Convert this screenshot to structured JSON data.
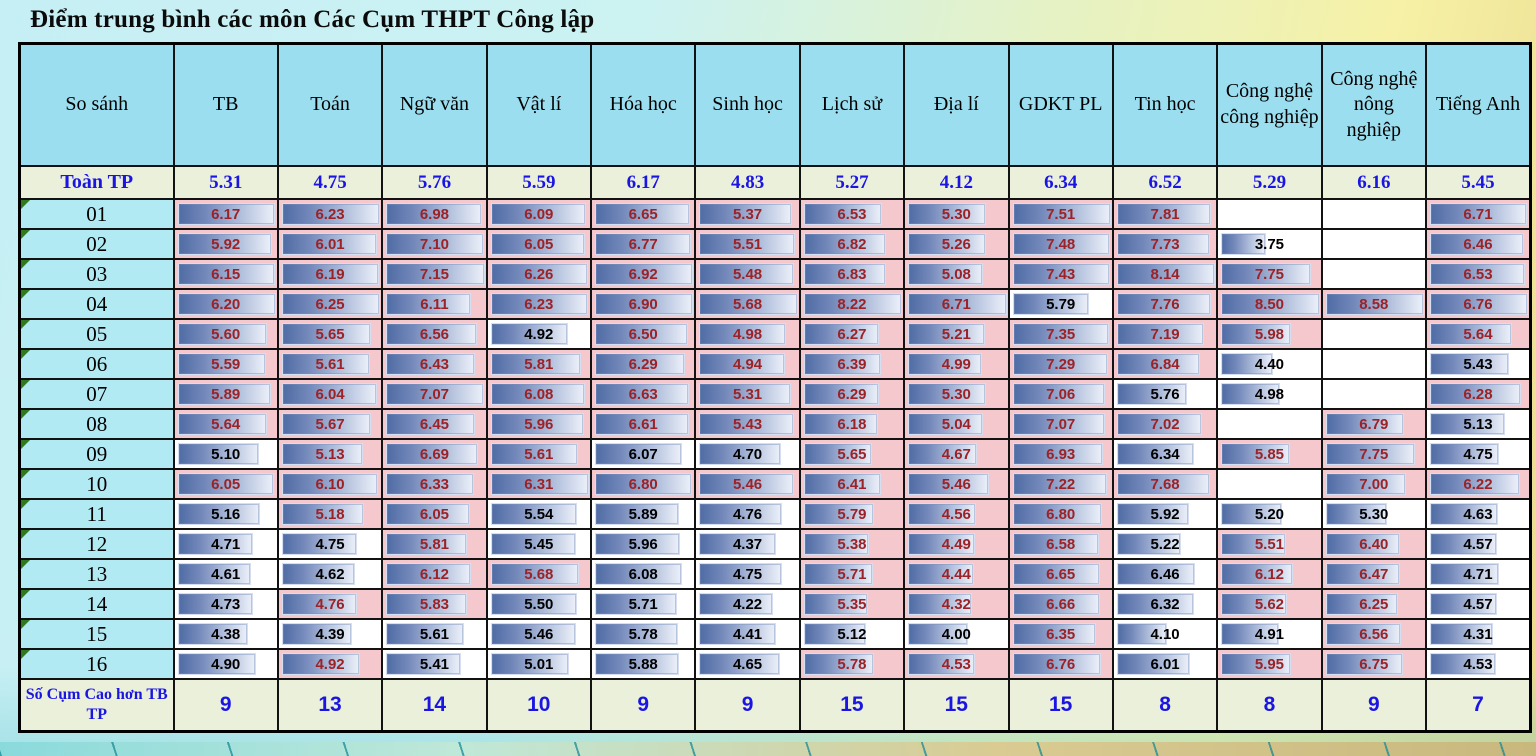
{
  "title": "Điểm trung bình các môn Các Cụm THPT Công lập",
  "colors": {
    "header_bg": "#9bdeef",
    "label_bg": "#b2eaf3",
    "summary_bg": "#eaf0da",
    "summary_text": "#1b15e3",
    "above_bg": "#f4c8cd",
    "below_bg": "#ffffff",
    "above_text": "#9b2227",
    "bar_dark": "#4f6ca4",
    "bar_light": "#ecf0f9"
  },
  "chart_data": {
    "type": "table",
    "title": "Điểm trung bình các môn Các Cụm THPT Công lập",
    "corner_header": "So sánh",
    "columns": [
      "TB",
      "Toán",
      "Ngữ văn",
      "Vật lí",
      "Hóa học",
      "Sinh học",
      "Lịch sử",
      "Địa lí",
      "GDKT PL",
      "Tin học",
      "Công nghệ công nghiệp",
      "Công nghệ nông nghiệp",
      "Tiếng Anh"
    ],
    "city_row": {
      "label": "Toàn TP",
      "values": [
        "5.31",
        "4.75",
        "5.76",
        "5.59",
        "6.17",
        "4.83",
        "5.27",
        "4.12",
        "6.34",
        "6.52",
        "5.29",
        "6.16",
        "5.45"
      ]
    },
    "cluster_rows": [
      {
        "label": "01",
        "values": [
          "6.17",
          "6.23",
          "6.98",
          "6.09",
          "6.65",
          "5.37",
          "6.53",
          "5.30",
          "7.51",
          "7.81",
          null,
          null,
          "6.71"
        ]
      },
      {
        "label": "02",
        "values": [
          "5.92",
          "6.01",
          "7.10",
          "6.05",
          "6.77",
          "5.51",
          "6.82",
          "5.26",
          "7.48",
          "7.73",
          "3.75",
          null,
          "6.46"
        ]
      },
      {
        "label": "03",
        "values": [
          "6.15",
          "6.19",
          "7.15",
          "6.26",
          "6.92",
          "5.48",
          "6.83",
          "5.08",
          "7.43",
          "8.14",
          "7.75",
          null,
          "6.53"
        ]
      },
      {
        "label": "04",
        "values": [
          "6.20",
          "6.25",
          "6.11",
          "6.23",
          "6.90",
          "5.68",
          "8.22",
          "6.71",
          "5.79",
          "7.76",
          "8.50",
          "8.58",
          "6.76"
        ]
      },
      {
        "label": "05",
        "values": [
          "5.60",
          "5.65",
          "6.56",
          "4.92",
          "6.50",
          "4.98",
          "6.27",
          "5.21",
          "7.35",
          "7.19",
          "5.98",
          null,
          "5.64"
        ]
      },
      {
        "label": "06",
        "values": [
          "5.59",
          "5.61",
          "6.43",
          "5.81",
          "6.29",
          "4.94",
          "6.39",
          "4.99",
          "7.29",
          "6.84",
          "4.40",
          null,
          "5.43"
        ]
      },
      {
        "label": "07",
        "values": [
          "5.89",
          "6.04",
          "7.07",
          "6.08",
          "6.63",
          "5.31",
          "6.29",
          "5.30",
          "7.06",
          "5.76",
          "4.98",
          null,
          "6.28"
        ]
      },
      {
        "label": "08",
        "values": [
          "5.64",
          "5.67",
          "6.45",
          "5.96",
          "6.61",
          "5.43",
          "6.18",
          "5.04",
          "7.07",
          "7.02",
          null,
          "6.79",
          "5.13"
        ]
      },
      {
        "label": "09",
        "values": [
          "5.10",
          "5.13",
          "6.69",
          "5.61",
          "6.07",
          "4.70",
          "5.65",
          "4.67",
          "6.93",
          "6.34",
          "5.85",
          "7.75",
          "4.75"
        ]
      },
      {
        "label": "10",
        "values": [
          "6.05",
          "6.10",
          "6.33",
          "6.31",
          "6.80",
          "5.46",
          "6.41",
          "5.46",
          "7.22",
          "7.68",
          null,
          "7.00",
          "6.22"
        ]
      },
      {
        "label": "11",
        "values": [
          "5.16",
          "5.18",
          "6.05",
          "5.54",
          "5.89",
          "4.76",
          "5.79",
          "4.56",
          "6.80",
          "5.92",
          "5.20",
          "5.30",
          "4.63"
        ]
      },
      {
        "label": "12",
        "values": [
          "4.71",
          "4.75",
          "5.81",
          "5.45",
          "5.96",
          "4.37",
          "5.38",
          "4.49",
          "6.58",
          "5.22",
          "5.51",
          "6.40",
          "4.57"
        ]
      },
      {
        "label": "13",
        "values": [
          "4.61",
          "4.62",
          "6.12",
          "5.68",
          "6.08",
          "4.75",
          "5.71",
          "4.44",
          "6.65",
          "6.46",
          "6.12",
          "6.47",
          "4.71"
        ]
      },
      {
        "label": "14",
        "values": [
          "4.73",
          "4.76",
          "5.83",
          "5.50",
          "5.71",
          "4.22",
          "5.35",
          "4.32",
          "6.66",
          "6.32",
          "5.62",
          "6.25",
          "4.57"
        ]
      },
      {
        "label": "15",
        "values": [
          "4.38",
          "4.39",
          "5.61",
          "5.46",
          "5.78",
          "4.41",
          "5.12",
          "4.00",
          "6.35",
          "4.10",
          "4.91",
          "6.56",
          "4.31"
        ]
      },
      {
        "label": "16",
        "values": [
          "4.90",
          "4.92",
          "5.41",
          "5.01",
          "5.88",
          "4.65",
          "5.78",
          "4.53",
          "6.76",
          "6.01",
          "5.95",
          "6.75",
          "4.53"
        ]
      }
    ],
    "footer_row": {
      "label": "Số Cụm Cao hơn TB TP",
      "values": [
        "9",
        "13",
        "14",
        "10",
        "9",
        "9",
        "15",
        "15",
        "15",
        "8",
        "8",
        "9",
        "7"
      ]
    },
    "notes": {
      "bar_scaling": "data bar length = value / column max (per subject column)",
      "pink_cells": "value above Toàn TP average",
      "white_cells": "value at or below Toàn TP average or missing"
    }
  }
}
